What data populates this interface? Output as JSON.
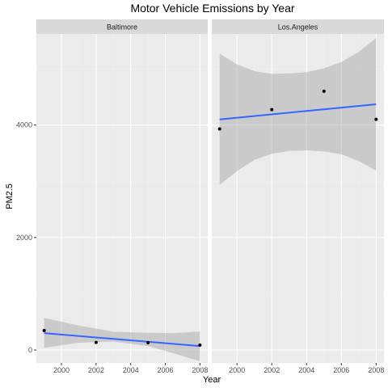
{
  "chart_data": {
    "type": "scatter",
    "title": "Motor Vehicle Emissions by Year",
    "xlabel": "Year",
    "ylabel": "PM2.5",
    "xlim": [
      1998.55,
      2008.45
    ],
    "ylim": [
      -230,
      5620
    ],
    "x_ticks": [
      2000,
      2002,
      2004,
      2006,
      2008
    ],
    "y_ticks": [
      0,
      2000,
      4000
    ],
    "grid": true,
    "facets": [
      {
        "label": "Baltimore",
        "points": [
          {
            "x": 1999,
            "y": 347
          },
          {
            "x": 2002,
            "y": 134
          },
          {
            "x": 2005,
            "y": 130
          },
          {
            "x": 2008,
            "y": 88
          }
        ],
        "fit": {
          "x": [
            1999,
            2008
          ],
          "y": [
            300,
            70
          ]
        },
        "band": [
          {
            "x": 1999,
            "lo": 40,
            "hi": 570
          },
          {
            "x": 2001,
            "lo": 130,
            "hi": 435
          },
          {
            "x": 2003,
            "lo": 150,
            "hi": 325
          },
          {
            "x": 2005,
            "lo": 70,
            "hi": 305
          },
          {
            "x": 2006.5,
            "lo": -60,
            "hi": 300
          },
          {
            "x": 2008,
            "lo": -200,
            "hi": 330
          }
        ]
      },
      {
        "label": "Los.Angeles",
        "points": [
          {
            "x": 1999,
            "y": 3931
          },
          {
            "x": 2002,
            "y": 4274
          },
          {
            "x": 2005,
            "y": 4601
          },
          {
            "x": 2008,
            "y": 4102
          }
        ],
        "fit": {
          "x": [
            1999,
            2008
          ],
          "y": [
            4100,
            4370
          ]
        },
        "band": [
          {
            "x": 1999,
            "lo": 2940,
            "hi": 5270
          },
          {
            "x": 2000,
            "lo": 3180,
            "hi": 5080
          },
          {
            "x": 2001,
            "lo": 3380,
            "hi": 4960
          },
          {
            "x": 2002,
            "lo": 3490,
            "hi": 4910
          },
          {
            "x": 2003,
            "lo": 3540,
            "hi": 4920
          },
          {
            "x": 2004,
            "lo": 3550,
            "hi": 4940
          },
          {
            "x": 2005,
            "lo": 3530,
            "hi": 5010
          },
          {
            "x": 2006,
            "lo": 3480,
            "hi": 5120
          },
          {
            "x": 2007,
            "lo": 3360,
            "hi": 5300
          },
          {
            "x": 2008,
            "lo": 3190,
            "hi": 5550
          }
        ]
      }
    ]
  },
  "colors": {
    "panel_bg": "#ebebeb",
    "strip_bg": "#d9d9d9",
    "grid_major": "#ffffff",
    "fit_line": "#3366ff",
    "band_fill": "#999999",
    "point": "#000000"
  }
}
